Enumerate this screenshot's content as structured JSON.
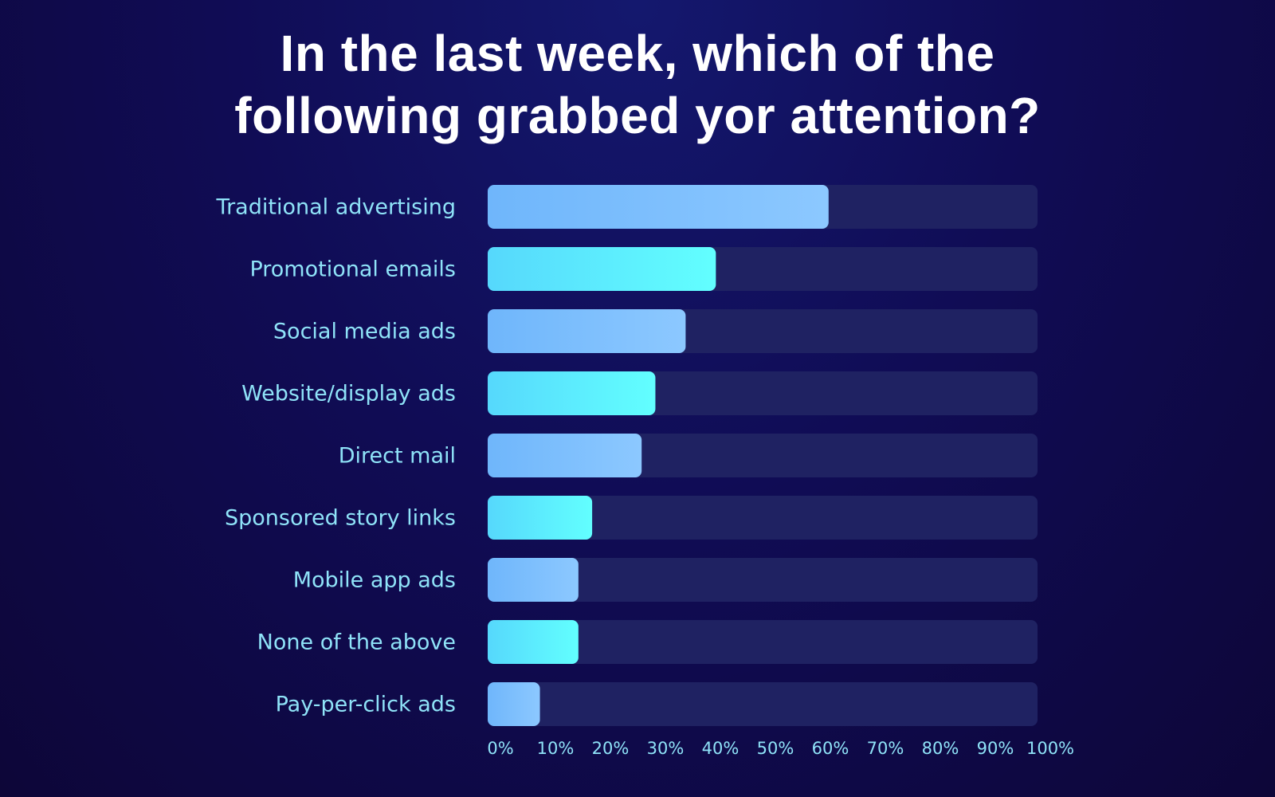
{
  "title": {
    "line1": "In the last week, which of the",
    "line2": "following grabbed yor attention?"
  },
  "chart_data": {
    "type": "bar",
    "orientation": "horizontal",
    "title": "In the last week, which of the following grabbed yor attention?",
    "categories": [
      "Traditional advertising",
      "Promotional emails",
      "Social media ads",
      "Website/display ads",
      "Direct mail",
      "Sponsored story links",
      "Mobile app ads",
      "None of the above",
      "Pay-per-click ads"
    ],
    "values": [
      62,
      41.5,
      36,
      30.5,
      28,
      19,
      16.5,
      16.5,
      9.5
    ],
    "xlim": [
      0,
      100
    ],
    "x_ticks": [
      "0%",
      "10%",
      "20%",
      "30%",
      "40%",
      "50%",
      "60%",
      "70%",
      "80%",
      "90%",
      "100%"
    ],
    "grid": false,
    "legend": "none",
    "colors": {
      "bar_blue_start": "#6fb6fb",
      "bar_blue_end": "#8cc8ff",
      "bar_cyan_start": "#56d8fc",
      "bar_cyan_end": "#62ffff",
      "track": "#1f2262",
      "label": "#8fe3f8"
    }
  }
}
